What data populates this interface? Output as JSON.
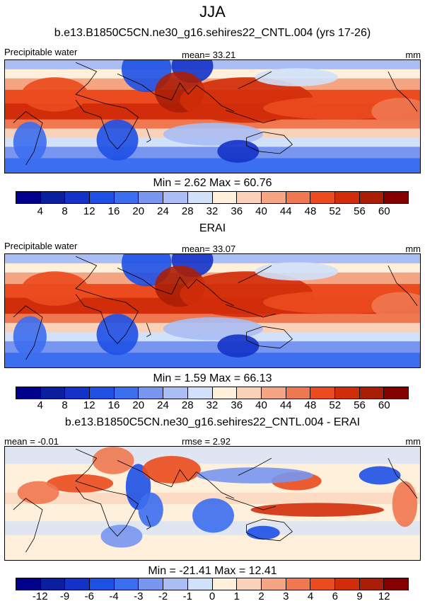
{
  "figure_title": "JJA",
  "chart_data": [
    {
      "type": "heatmap",
      "title": "b.e13.B1850C5CN.ne30_g16.sehires22_CNTL.004 (yrs 17-26)",
      "left_label": "Precipitable water",
      "center_label": "mean=  33.21",
      "right_label": "mm",
      "min": 2.62,
      "max": 60.76,
      "stats_text": "Min =   2.62 Max =  60.76",
      "colorbar_levels": [
        "4",
        "8",
        "12",
        "16",
        "20",
        "24",
        "28",
        "32",
        "36",
        "40",
        "44",
        "48",
        "52",
        "56",
        "60"
      ]
    },
    {
      "type": "heatmap",
      "title": "ERAI",
      "left_label": "Precipitable water",
      "center_label": "mean=  33.07",
      "right_label": "mm",
      "min": 1.59,
      "max": 66.13,
      "stats_text": "Min =   1.59 Max =  66.13",
      "colorbar_levels": [
        "4",
        "8",
        "12",
        "16",
        "20",
        "24",
        "28",
        "32",
        "36",
        "40",
        "44",
        "48",
        "52",
        "56",
        "60"
      ]
    },
    {
      "type": "heatmap",
      "title": "b.e13.B1850C5CN.ne30_g16.sehires22_CNTL.004 - ERAI",
      "left_label": "mean =  -0.01",
      "center_label": "rmse =   2.92",
      "right_label": "mm",
      "min": -21.41,
      "max": 12.41,
      "stats_text": "Min = -21.41 Max =  12.41",
      "colorbar_levels": [
        "-12",
        "-9",
        "-6",
        "-4",
        "-3",
        "-2",
        "-1",
        "0",
        "1",
        "2",
        "3",
        "4",
        "6",
        "9",
        "12"
      ]
    }
  ],
  "colors": [
    "#00008c",
    "#0a1ea0",
    "#1432c8",
    "#1e50e6",
    "#3c6ef0",
    "#7896f0",
    "#aabef5",
    "#d2e1fa",
    "#fff0dc",
    "#fad2b9",
    "#f5a582",
    "#f07850",
    "#eb4b1e",
    "#d22d0a",
    "#aa1e05",
    "#870000"
  ]
}
